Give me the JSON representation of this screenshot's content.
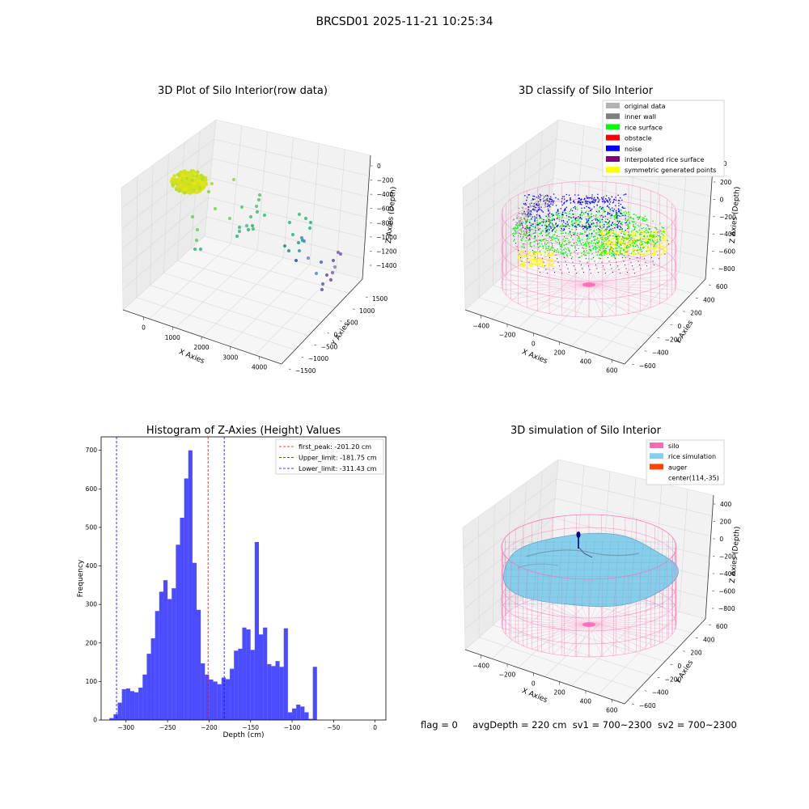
{
  "suptitle": "BRCSD01 2025-11-21 10:25:34",
  "footer": {
    "flag": "flag = 0",
    "avgDepth": "avgDepth = 220 cm",
    "sv1": "sv1 = 700~2300",
    "sv2": "sv2 = 700~2300"
  },
  "colors": {
    "raw_a": "#c8e020",
    "raw_b": "#3aa88e",
    "raw_c": "#7a5ea8",
    "original": "#b3b3b3",
    "inner_wall": "#808080",
    "rice_surface": "#00ff00",
    "obstacle": "#ff0000",
    "noise": "#0000ff",
    "interpolated": "#800080",
    "symmetric": "#ffff00",
    "silo": "#ff69b4",
    "rice_sim": "#87ceeb",
    "auger": "#ff4500",
    "hist": "#0000ff",
    "peak_line": "#ff0000",
    "limit_line": "#0000ff"
  },
  "chart_data": [
    {
      "type": "scatter3d",
      "title": "3D Plot of Silo Interior(row data)",
      "xlabel": "X Axies",
      "ylabel": "Y Axies",
      "zlabel": "Z Axies (Depth)",
      "x_ticks": [
        "0",
        "1000",
        "2000",
        "3000",
        "4000"
      ],
      "y_ticks": [
        "1500",
        "1000",
        "500",
        "0",
        "−500",
        "−1000",
        "−1500"
      ],
      "z_ticks": [
        "0",
        "−200",
        "−400",
        "−600",
        "−800",
        "−1000",
        "−1200",
        "−1400"
      ]
    },
    {
      "type": "scatter3d",
      "title": "3D classify of Silo Interior",
      "xlabel": "X Axies",
      "ylabel": "Y Axies",
      "zlabel": "Z Axies (Depth)",
      "x_ticks": [
        "−400",
        "−200",
        "0",
        "200",
        "400",
        "600"
      ],
      "y_ticks": [
        "600",
        "400",
        "200",
        "0",
        "−200",
        "−400",
        "−600"
      ],
      "z_ticks": [
        "200",
        "0",
        "−200",
        "−400",
        "−600",
        "−800"
      ],
      "z_top_partial": "00",
      "legend": [
        "original data",
        "inner wall",
        "rice surface",
        "obstacle",
        "noise",
        "interpolated rice surface",
        "symmetric generated points"
      ]
    },
    {
      "type": "bar",
      "title": "Histogram of Z-Axies (Height) Values",
      "xlabel": "Depth (cm)",
      "ylabel": "Frequency",
      "xlim": [
        -330,
        13
      ],
      "ylim": [
        0,
        735
      ],
      "x_ticks": [
        -300,
        -250,
        -200,
        -150,
        -100,
        -50,
        0
      ],
      "y_ticks": [
        0,
        100,
        200,
        300,
        400,
        500,
        600,
        700
      ],
      "bin_start": -330,
      "bin_width": 5,
      "values": [
        0,
        0,
        5,
        15,
        45,
        80,
        82,
        75,
        72,
        84,
        118,
        172,
        212,
        283,
        333,
        363,
        314,
        342,
        455,
        525,
        627,
        700,
        408,
        286,
        147,
        118,
        105,
        100,
        93,
        110,
        106,
        133,
        180,
        185,
        240,
        235,
        182,
        462,
        222,
        240,
        145,
        140,
        153,
        138,
        238,
        20,
        30,
        40,
        35,
        20,
        3,
        138
      ],
      "lines": [
        {
          "label": "first_peak: -201.20 cm",
          "x": -201.2,
          "color": "#ff0000"
        },
        {
          "label": "Upper_limit: -181.75 cm",
          "x": -181.75,
          "color": "#0000ff"
        },
        {
          "label": "Lower_limit: -311.43 cm",
          "x": -311.43,
          "color": "#0000ff"
        }
      ]
    },
    {
      "type": "surface3d",
      "title": "3D simulation of Silo Interior",
      "xlabel": "X Axies",
      "ylabel": "Y Axies",
      "zlabel": "Z Axies (Depth)",
      "x_ticks": [
        "−400",
        "−200",
        "0",
        "200",
        "400",
        "600"
      ],
      "y_ticks": [
        "600",
        "400",
        "200",
        "0",
        "−200",
        "−400",
        "−600"
      ],
      "z_ticks": [
        "400",
        "200",
        "0",
        "−200",
        "−400",
        "−600",
        "−800"
      ],
      "legend": [
        "silo",
        "rice simulation",
        "auger",
        "center(114,-35)"
      ]
    }
  ]
}
